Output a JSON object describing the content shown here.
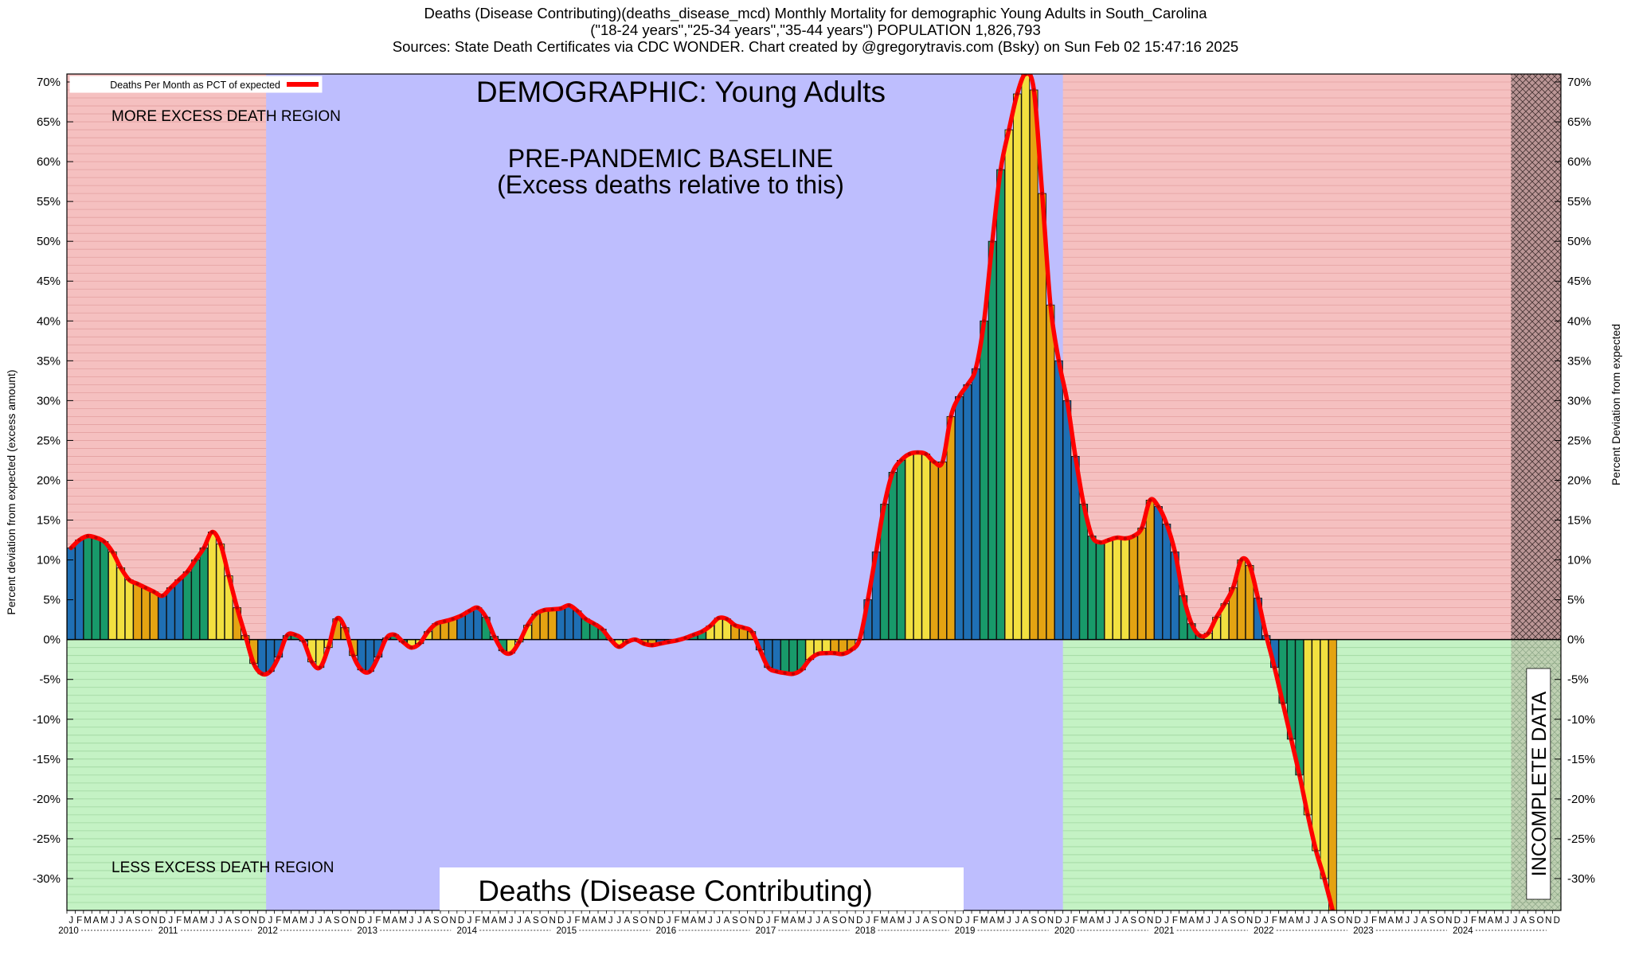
{
  "header": {
    "line1": "Deaths (Disease Contributing)(deaths_disease_mcd) Monthly Mortality for demographic Young Adults in South_Carolina",
    "line2": "(\"18-24 years\",\"25-34 years\",\"35-44 years\") POPULATION 1,826,793",
    "line3": "Sources: State Death Certificates via CDC WONDER.              Chart created by @gregorytravis.com (Bsky) on Sun Feb 02 15:47:16 2025"
  },
  "chart_data": {
    "type": "bar",
    "title": "DEMOGRAPHIC: Young Adults",
    "subtitle": "Deaths (Disease Contributing)",
    "ylabel_left": "Percent deviation from expected (excess amount)",
    "ylabel_right": "Percent Deviation from expected",
    "legend": "Deaths Per Month as PCT of expected",
    "ylim": [
      -34,
      71
    ],
    "yticks": [
      70,
      65,
      60,
      55,
      50,
      45,
      40,
      35,
      30,
      25,
      20,
      15,
      10,
      5,
      0,
      -5,
      -10,
      -15,
      -20,
      -25,
      -30
    ],
    "annotations": {
      "more_excess": "MORE EXCESS DEATH REGION",
      "less_excess": "LESS EXCESS DEATH REGION",
      "baseline_line1": "PRE-PANDEMIC BASELINE",
      "baseline_line2": "(Excess deaths relative to this)",
      "incomplete": "INCOMPLETE DATA"
    },
    "month_letters": [
      "J",
      "F",
      "M",
      "A",
      "M",
      "J",
      "J",
      "A",
      "S",
      "O",
      "N",
      "D"
    ],
    "years": [
      "2010",
      "2011",
      "2012",
      "2013",
      "2014",
      "2015",
      "2016",
      "2017",
      "2018",
      "2019",
      "2020",
      "2021",
      "2022",
      "2023",
      "2024"
    ],
    "start": "2010-01",
    "regions": [
      {
        "name": "pre-pandemic-baseline",
        "from": "2012-01",
        "to": "2019-12"
      },
      {
        "name": "incomplete-data",
        "from": "2024-07",
        "to": "2024-12"
      }
    ],
    "colors": {
      "winter": "#1f6fb4",
      "spring": "#189a6a",
      "summer": "#f2e040",
      "fall": "#e4a312",
      "line": "#ff0000",
      "excess_bg": "#f5c0c0",
      "less_bg": "#c4f2c4",
      "baseline_bg": "#bebefe",
      "incomplete_bg": "#b08c8c"
    },
    "values": [
      11.5,
      12.5,
      13,
      12.8,
      12.3,
      11,
      9,
      7.5,
      7,
      6.5,
      6,
      5.5,
      6.5,
      7.5,
      8.5,
      10,
      11.5,
      13.5,
      12,
      8,
      4,
      0.5,
      -3,
      -4.3,
      -4,
      -2.2,
      0.5,
      0.6,
      -0.2,
      -2.8,
      -3.5,
      -1,
      2.6,
      1.5,
      -2,
      -3.8,
      -4,
      -2.2,
      0.2,
      0.6,
      -0.3,
      -1,
      -0.5,
      1,
      2,
      2.3,
      2.6,
      3,
      3.6,
      4,
      2.8,
      0.4,
      -1.4,
      -1.7,
      -0.3,
      1.8,
      3.2,
      3.7,
      3.8,
      3.9,
      4.3,
      3.6,
      2.6,
      2,
      1.3,
      0,
      -0.9,
      -0.3,
      0,
      -0.5,
      -0.7,
      -0.5,
      -0.3,
      -0.1,
      0.2,
      0.6,
      1,
      1.7,
      2.7,
      2.6,
      1.8,
      1.5,
      1,
      -1.3,
      -3.5,
      -4,
      -4.2,
      -4.3,
      -3.8,
      -2.5,
      -1.8,
      -1.7,
      -1.7,
      -1.8,
      -1.3,
      0,
      5,
      11,
      17,
      21,
      22.5,
      23.3,
      23.5,
      23.3,
      22.3,
      22.3,
      28,
      30.5,
      32,
      34,
      40,
      50,
      59,
      64,
      68.5,
      71,
      69,
      56,
      42,
      35,
      30,
      23,
      17,
      13,
      12.2,
      12.5,
      12.8,
      12.7,
      13,
      14,
      17.5,
      16.7,
      14.5,
      11,
      5.5,
      2,
      0.5,
      0.8,
      2.8,
      4.5,
      6.5,
      10,
      9.3,
      5.2,
      0.5,
      -3.5,
      -8,
      -12.5,
      -17,
      -22,
      -26.5,
      -30,
      -34
    ]
  }
}
